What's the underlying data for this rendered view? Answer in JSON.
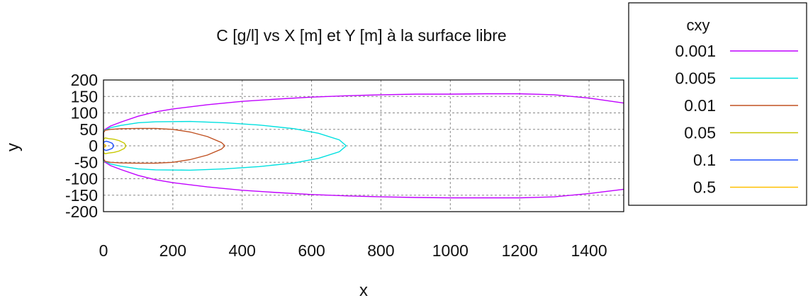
{
  "chart_data": {
    "type": "line",
    "subtype": "contour",
    "title": "C [g/l] vs X [m] et Y [m] à la surface libre",
    "xlabel": "x",
    "ylabel": "y",
    "xlim": [
      0,
      1500
    ],
    "ylim": [
      -200,
      200
    ],
    "grid": true,
    "legend_position": "right",
    "legend_title": "cxy",
    "x_ticks": [
      "0",
      "200",
      "400",
      "600",
      "800",
      "1000",
      "1200",
      "1400"
    ],
    "y_ticks": [
      "200",
      "150",
      "100",
      "50",
      "0",
      "-50",
      "-100",
      "-150",
      "-200"
    ],
    "series": [
      {
        "name": "0.001",
        "color": "#c000ff",
        "points": [
          [
            1500,
            130
          ],
          [
            1400,
            145
          ],
          [
            1300,
            155
          ],
          [
            1200,
            158
          ],
          [
            1100,
            158
          ],
          [
            1000,
            157
          ],
          [
            900,
            157
          ],
          [
            800,
            155
          ],
          [
            700,
            152
          ],
          [
            600,
            148
          ],
          [
            500,
            142
          ],
          [
            400,
            135
          ],
          [
            300,
            125
          ],
          [
            200,
            112
          ],
          [
            150,
            103
          ],
          [
            100,
            90
          ],
          [
            50,
            72
          ],
          [
            20,
            60
          ],
          [
            5,
            50
          ],
          [
            0,
            40
          ],
          [
            0,
            0
          ],
          [
            0,
            -40
          ],
          [
            5,
            -50
          ],
          [
            20,
            -60
          ],
          [
            50,
            -72
          ],
          [
            100,
            -90
          ],
          [
            150,
            -103
          ],
          [
            200,
            -112
          ],
          [
            300,
            -125
          ],
          [
            400,
            -135
          ],
          [
            500,
            -142
          ],
          [
            600,
            -148
          ],
          [
            700,
            -152
          ],
          [
            800,
            -155
          ],
          [
            900,
            -157
          ],
          [
            1000,
            -158
          ],
          [
            1100,
            -158
          ],
          [
            1200,
            -158
          ],
          [
            1300,
            -155
          ],
          [
            1400,
            -145
          ],
          [
            1500,
            -132
          ]
        ]
      },
      {
        "name": "0.005",
        "color": "#00e0e0",
        "points": [
          [
            700,
            0
          ],
          [
            680,
            18
          ],
          [
            620,
            38
          ],
          [
            550,
            52
          ],
          [
            450,
            63
          ],
          [
            350,
            70
          ],
          [
            250,
            74
          ],
          [
            150,
            73
          ],
          [
            100,
            70
          ],
          [
            50,
            62
          ],
          [
            20,
            55
          ],
          [
            0,
            45
          ],
          [
            0,
            0
          ],
          [
            0,
            -45
          ],
          [
            20,
            -55
          ],
          [
            50,
            -62
          ],
          [
            100,
            -70
          ],
          [
            150,
            -73
          ],
          [
            250,
            -74
          ],
          [
            350,
            -70
          ],
          [
            450,
            -63
          ],
          [
            550,
            -52
          ],
          [
            620,
            -38
          ],
          [
            680,
            -18
          ],
          [
            700,
            0
          ]
        ]
      },
      {
        "name": "0.01",
        "color": "#c05020",
        "points": [
          [
            350,
            0
          ],
          [
            340,
            10
          ],
          [
            300,
            28
          ],
          [
            250,
            42
          ],
          [
            200,
            50
          ],
          [
            150,
            53
          ],
          [
            100,
            53
          ],
          [
            50,
            52
          ],
          [
            20,
            50
          ],
          [
            5,
            47
          ],
          [
            0,
            40
          ],
          [
            0,
            0
          ],
          [
            0,
            -40
          ],
          [
            5,
            -47
          ],
          [
            20,
            -50
          ],
          [
            50,
            -52
          ],
          [
            100,
            -53
          ],
          [
            150,
            -53
          ],
          [
            200,
            -50
          ],
          [
            250,
            -42
          ],
          [
            300,
            -28
          ],
          [
            340,
            -10
          ],
          [
            350,
            0
          ]
        ]
      },
      {
        "name": "0.05",
        "color": "#c8c800",
        "points": [
          [
            65,
            0
          ],
          [
            60,
            8
          ],
          [
            45,
            16
          ],
          [
            30,
            20
          ],
          [
            15,
            22
          ],
          [
            5,
            24
          ],
          [
            0,
            20
          ],
          [
            0,
            -20
          ],
          [
            5,
            -24
          ],
          [
            15,
            -22
          ],
          [
            30,
            -20
          ],
          [
            45,
            -16
          ],
          [
            60,
            -8
          ],
          [
            65,
            0
          ]
        ]
      },
      {
        "name": "0.1",
        "color": "#2050ff",
        "points": [
          [
            30,
            0
          ],
          [
            25,
            8
          ],
          [
            15,
            12
          ],
          [
            8,
            14
          ],
          [
            2,
            12
          ],
          [
            0,
            8
          ],
          [
            0,
            -8
          ],
          [
            2,
            -12
          ],
          [
            8,
            -14
          ],
          [
            15,
            -12
          ],
          [
            25,
            -8
          ],
          [
            30,
            0
          ]
        ]
      },
      {
        "name": "0.5",
        "color": "#ffc000",
        "points": [
          [
            8,
            0
          ],
          [
            5,
            3
          ],
          [
            1,
            4
          ],
          [
            0,
            2
          ],
          [
            0,
            -2
          ],
          [
            1,
            -4
          ],
          [
            5,
            -3
          ],
          [
            8,
            0
          ]
        ]
      }
    ]
  }
}
